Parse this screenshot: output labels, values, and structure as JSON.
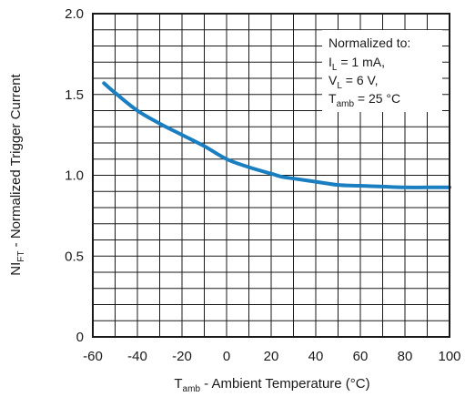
{
  "chart_data": {
    "type": "line",
    "xlabel": {
      "main": "T",
      "sub": "amb",
      "rest": " - Ambient Temperature (°C)"
    },
    "ylabel": {
      "main": "NI",
      "sub": "FT",
      "rest": " - Normalized Trigger Current"
    },
    "xlim": [
      -60,
      100
    ],
    "ylim": [
      0,
      2.0
    ],
    "x_ticks": [
      -60,
      -40,
      -20,
      0,
      20,
      40,
      60,
      80,
      100
    ],
    "x_tick_labels": [
      "-60",
      "-40",
      "-20",
      "0",
      "20",
      "40",
      "60",
      "80",
      "100"
    ],
    "y_ticks": [
      0,
      0.5,
      1.0,
      1.5,
      2.0
    ],
    "y_tick_labels": [
      "0",
      "0.5",
      "1.0",
      "1.5",
      "2.0"
    ],
    "grid": true,
    "series": [
      {
        "color": "#1a7fc1",
        "x": [
          -55,
          -50,
          -40,
          -30,
          -20,
          -10,
          0,
          10,
          20,
          25,
          30,
          40,
          50,
          60,
          70,
          80,
          90,
          100
        ],
        "y": [
          1.57,
          1.51,
          1.4,
          1.32,
          1.25,
          1.18,
          1.1,
          1.05,
          1.01,
          0.99,
          0.98,
          0.96,
          0.94,
          0.935,
          0.93,
          0.925,
          0.925,
          0.925
        ]
      }
    ],
    "annotation": {
      "line1": "Normalized to:",
      "line2": {
        "main": "I",
        "sub": "L",
        "rest": " = 1 mA,"
      },
      "line3": {
        "main": "V",
        "sub": "L",
        "rest": " = 6 V,"
      },
      "line4": {
        "main": "T",
        "sub": "amb",
        "rest": " = 25 °C"
      }
    }
  }
}
